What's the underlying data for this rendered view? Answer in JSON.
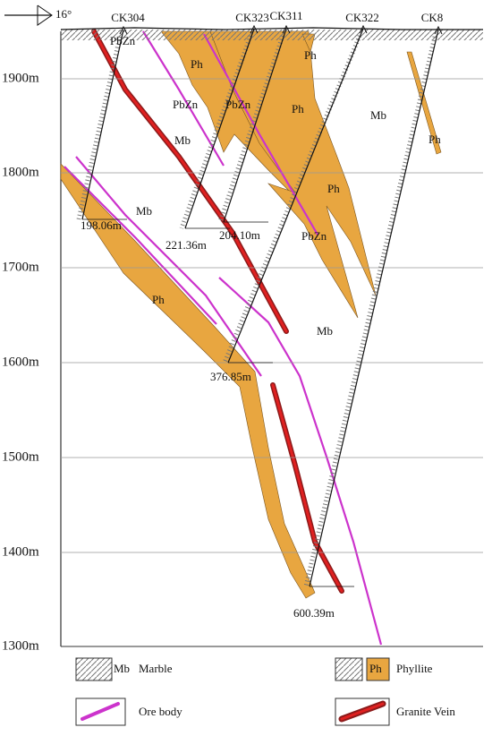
{
  "orientation": "16°",
  "elevations": [
    "1900m",
    "1800m",
    "1700m",
    "1600m",
    "1500m",
    "1400m",
    "1300m"
  ],
  "boreholes": [
    {
      "name": "CK304",
      "depth": "198.06m"
    },
    {
      "name": "CK323",
      "depth": "221.36m"
    },
    {
      "name": "CK311",
      "depth": "204.10m"
    },
    {
      "name": "CK322",
      "depth": "376.85m"
    },
    {
      "name": "CK8",
      "depth": "600.39m"
    }
  ],
  "rock_labels": [
    "PbZn",
    "Ph",
    "Ph",
    "PbZn",
    "PbZn",
    "Ph",
    "Mb",
    "Ph",
    "Mb",
    "Mb",
    "Ph",
    "PbZn",
    "Ph",
    "Mb"
  ],
  "legend": [
    {
      "symbol": "Mb",
      "label": "Marble"
    },
    {
      "symbol": "Ph",
      "label": "Phyllite"
    },
    {
      "label": "Ore body"
    },
    {
      "label": "Granite Vein"
    }
  ]
}
